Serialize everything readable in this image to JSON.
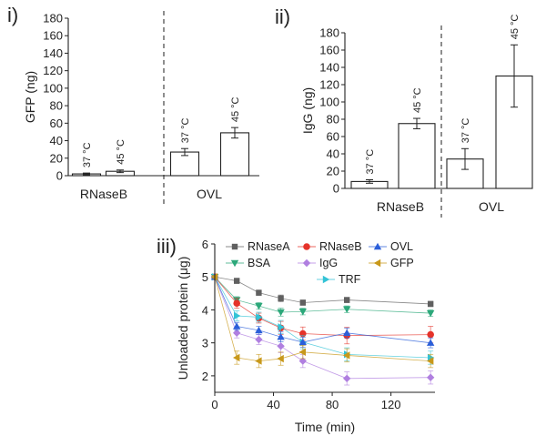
{
  "chart_data": [
    {
      "type": "bar",
      "panel_label": "i)",
      "ylabel": "GFP (ng)",
      "ylim": [
        0,
        180
      ],
      "yticks": [
        0,
        20,
        40,
        60,
        80,
        100,
        120,
        140,
        160,
        180
      ],
      "groups": [
        {
          "name": "RNaseB",
          "bars": [
            {
              "label": "37 °C",
              "value": 2,
              "error": 1
            },
            {
              "label": "45 °C",
              "value": 5,
              "error": 1.5
            }
          ]
        },
        {
          "name": "OVL",
          "bars": [
            {
              "label": "37 °C",
              "value": 27,
              "error": 4
            },
            {
              "label": "45 °C",
              "value": 49,
              "error": 6
            }
          ]
        }
      ]
    },
    {
      "type": "bar",
      "panel_label": "ii)",
      "ylabel": "IgG (ng)",
      "ylim": [
        0,
        180
      ],
      "yticks": [
        0,
        20,
        40,
        60,
        80,
        100,
        120,
        140,
        160,
        180
      ],
      "groups": [
        {
          "name": "RNaseB",
          "bars": [
            {
              "label": "37 °C",
              "value": 8,
              "error": 2
            },
            {
              "label": "45 °C",
              "value": 75,
              "error": 6
            }
          ]
        },
        {
          "name": "OVL",
          "bars": [
            {
              "label": "37 °C",
              "value": 34,
              "error": 12
            },
            {
              "label": "45 °C",
              "value": 130,
              "error": 36
            }
          ]
        }
      ]
    },
    {
      "type": "line",
      "panel_label": "iii)",
      "xlabel": "Time (min)",
      "ylabel": "Unloaded protein (μg)",
      "xlim": [
        0,
        150
      ],
      "ylim": [
        1.5,
        6
      ],
      "xticks": [
        0,
        40,
        80,
        120
      ],
      "yticks": [
        2,
        3,
        4,
        5,
        6
      ],
      "x": [
        0,
        15,
        30,
        45,
        60,
        90,
        147
      ],
      "series": [
        {
          "name": "RNaseA",
          "color": "#606060",
          "marker": "square",
          "values": [
            5.0,
            4.88,
            4.52,
            4.35,
            4.22,
            4.3,
            4.18
          ],
          "errors": [
            0.05,
            0.08,
            0.08,
            0.1,
            0.08,
            0.08,
            0.08
          ]
        },
        {
          "name": "BSA",
          "color": "#2ca87a",
          "marker": "triangle-down",
          "values": [
            5.0,
            4.3,
            4.12,
            3.93,
            3.95,
            4.02,
            3.9
          ],
          "errors": [
            0.05,
            0.1,
            0.1,
            0.12,
            0.1,
            0.1,
            0.1
          ]
        },
        {
          "name": "RNaseB",
          "color": "#e5332a",
          "marker": "circle",
          "values": [
            5.0,
            4.2,
            3.75,
            3.45,
            3.28,
            3.22,
            3.25
          ],
          "errors": [
            0.05,
            0.15,
            0.15,
            0.2,
            0.2,
            0.25,
            0.25
          ]
        },
        {
          "name": "IgG",
          "color": "#b07fe0",
          "marker": "diamond",
          "values": [
            5.0,
            3.3,
            3.1,
            2.9,
            2.45,
            1.92,
            1.95
          ],
          "errors": [
            0.05,
            0.15,
            0.15,
            0.2,
            0.2,
            0.2,
            0.2
          ]
        },
        {
          "name": "TRF",
          "color": "#33c3d6",
          "marker": "triangle-right",
          "values": [
            5.0,
            3.82,
            3.78,
            3.48,
            3.02,
            2.65,
            2.55
          ],
          "errors": [
            0.05,
            0.15,
            0.15,
            0.2,
            0.2,
            0.2,
            0.2
          ]
        },
        {
          "name": "OVL",
          "color": "#2b5fd9",
          "marker": "triangle-up",
          "values": [
            5.0,
            3.5,
            3.38,
            3.18,
            3.02,
            3.3,
            3.0
          ],
          "errors": [
            0.05,
            0.12,
            0.12,
            0.15,
            0.15,
            0.15,
            0.15
          ]
        },
        {
          "name": "GFP",
          "color": "#c8981a",
          "marker": "triangle-left",
          "values": [
            5.0,
            2.55,
            2.45,
            2.52,
            2.72,
            2.62,
            2.45
          ],
          "errors": [
            0.05,
            0.2,
            0.2,
            0.2,
            0.2,
            0.2,
            0.2
          ]
        }
      ]
    }
  ]
}
